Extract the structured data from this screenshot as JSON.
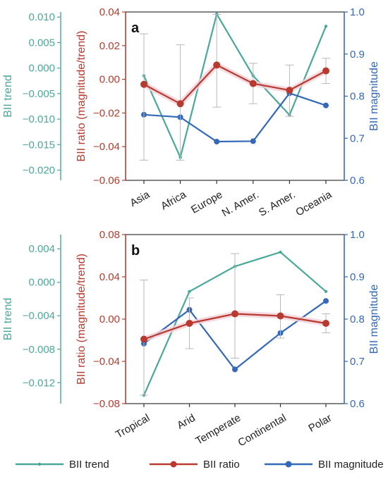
{
  "colors": {
    "trend": "#4aa89a",
    "ratio": "#b83a2e",
    "magnitude": "#3468b8",
    "error": "#b8b8b8",
    "axis": "#333333"
  },
  "legend": {
    "trend_label": "BII trend",
    "ratio_label": "BII ratio",
    "magnitude_label": "BII magnitude"
  },
  "chart_data": [
    {
      "type": "line",
      "panel_label": "a",
      "categories": [
        "Asia",
        "Africa",
        "Europe",
        "N. Amer.",
        "S. Amer.",
        "Oceania"
      ],
      "left_axis": {
        "label": "BII trend",
        "lim": [
          -0.022,
          0.011
        ],
        "ticks": [
          "0.010",
          "0.005",
          "0.000",
          "−0.005",
          "−0.010",
          "−0.015",
          "−0.020"
        ],
        "tick_values": [
          0.01,
          0.005,
          0.0,
          -0.005,
          -0.01,
          -0.015,
          -0.02
        ]
      },
      "ratio_axis": {
        "label": "BII ratio (magnitude/trend)",
        "lim": [
          -0.06,
          0.04
        ],
        "ticks": [
          "0.04",
          "0.02",
          "0.00",
          "−0.02",
          "−0.04",
          "−0.06"
        ],
        "tick_values": [
          0.04,
          0.02,
          0.0,
          -0.02,
          -0.04,
          -0.06
        ]
      },
      "right_axis": {
        "label": "BII magnitude",
        "lim": [
          0.6,
          1.0
        ],
        "ticks": [
          "1.0",
          "0.9",
          "0.8",
          "0.7",
          "0.6"
        ],
        "tick_values": [
          1.0,
          0.9,
          0.8,
          0.7,
          0.6
        ]
      },
      "series": [
        {
          "name": "BII trend",
          "axis": "left",
          "values": [
            -0.0015,
            -0.0175,
            0.0106,
            -0.0015,
            -0.0092,
            0.0082
          ]
        },
        {
          "name": "BII ratio",
          "axis": "ratio",
          "values": [
            -0.003,
            -0.0145,
            0.0085,
            -0.0025,
            -0.0065,
            0.005
          ],
          "error": [
            [
              -0.048,
              0.027
            ],
            [
              -0.048,
              0.0205
            ],
            [
              -0.0165,
              0.0385
            ],
            [
              -0.0145,
              0.0095
            ],
            [
              -0.022,
              0.0085
            ],
            [
              -0.0025,
              0.0125
            ]
          ]
        },
        {
          "name": "BII magnitude",
          "axis": "right",
          "values": [
            0.756,
            0.75,
            0.692,
            0.693,
            0.807,
            0.778
          ]
        }
      ]
    },
    {
      "type": "line",
      "panel_label": "b",
      "categories": [
        "Tropical",
        "Arid",
        "Temperate",
        "Continental",
        "Polar"
      ],
      "left_axis": {
        "label": "BII trend",
        "lim": [
          -0.0145,
          0.0057
        ],
        "ticks": [
          "0.004",
          "0.000",
          "−0.004",
          "−0.008",
          "−0.012"
        ],
        "tick_values": [
          0.004,
          0.0,
          -0.004,
          -0.008,
          -0.012
        ]
      },
      "ratio_axis": {
        "label": "BII ratio (magnitude/trend)",
        "lim": [
          -0.08,
          0.08
        ],
        "ticks": [
          "0.08",
          "0.04",
          "0.00",
          "−0.04",
          "−0.08"
        ],
        "tick_values": [
          0.08,
          0.04,
          0.0,
          -0.04,
          -0.08
        ]
      },
      "right_axis": {
        "label": "BII magnitude",
        "lim": [
          0.6,
          1.0
        ],
        "ticks": [
          "1.0",
          "0.9",
          "0.8",
          "0.7",
          "0.6"
        ],
        "tick_values": [
          1.0,
          0.9,
          0.8,
          0.7,
          0.6
        ]
      },
      "series": [
        {
          "name": "BII trend",
          "axis": "left",
          "values": [
            -0.0135,
            -0.0011,
            0.0019,
            0.0036,
            -0.0011
          ]
        },
        {
          "name": "BII ratio",
          "axis": "ratio",
          "values": [
            -0.019,
            -0.004,
            0.005,
            0.003,
            -0.004
          ],
          "error": [
            [
              -0.072,
              0.037
            ],
            [
              -0.028,
              0.02
            ],
            [
              -0.037,
              0.062
            ],
            [
              -0.018,
              0.023
            ],
            [
              -0.013,
              0.005
            ]
          ]
        },
        {
          "name": "BII magnitude",
          "axis": "right",
          "values": [
            0.742,
            0.822,
            0.681,
            0.767,
            0.843
          ]
        }
      ]
    }
  ]
}
